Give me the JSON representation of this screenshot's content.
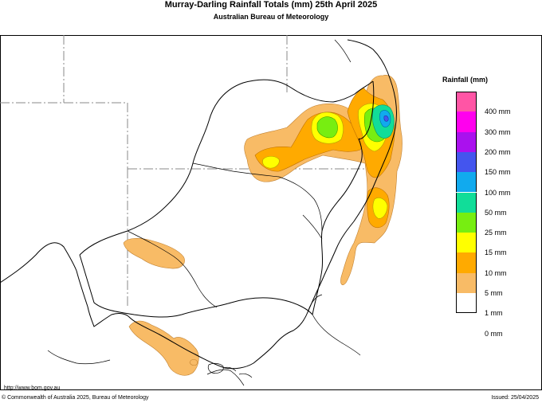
{
  "header": {
    "title": "Murray-Darling Rainfall Totals (mm)     25th April 2025",
    "subtitle": "Australian Bureau of Meteorology"
  },
  "legend": {
    "title": "Rainfall (mm)",
    "items": [
      {
        "label": "400 mm",
        "color": "#ff55a5"
      },
      {
        "label": "300 mm",
        "color": "#ff00ee"
      },
      {
        "label": "200 mm",
        "color": "#aa11ee"
      },
      {
        "label": "150 mm",
        "color": "#4455ee"
      },
      {
        "label": "100 mm",
        "color": "#11aaee"
      },
      {
        "label": "50 mm",
        "color": "#11dd99"
      },
      {
        "label": "25 mm",
        "color": "#77ee11"
      },
      {
        "label": "15 mm",
        "color": "#ffff00"
      },
      {
        "label": "10 mm",
        "color": "#ffaa00"
      },
      {
        "label": "5 mm",
        "color": "#f8bb66"
      },
      {
        "label": "1 mm",
        "color": "#ffffff"
      },
      {
        "label": "0 mm",
        "color": ""
      }
    ]
  },
  "footer": {
    "url": "http://www.bom.gov.au",
    "copyright": "© Commonwealth of Australia 2025, Bureau of Meteorology",
    "issued": "Issued: 25/04/2025"
  }
}
